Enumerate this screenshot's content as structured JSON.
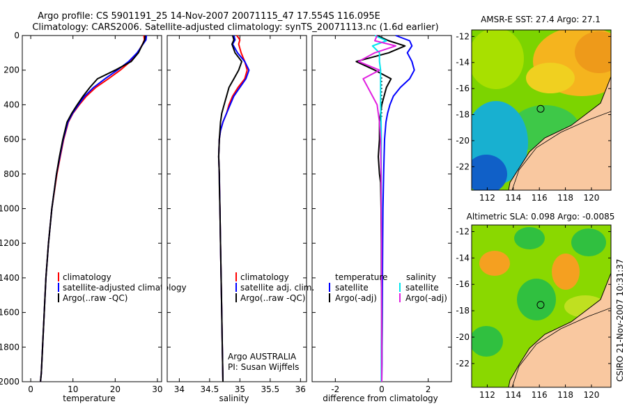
{
  "header": {
    "line1": "Argo profile: CS 5901191_25 14-Nov-2007 20071115_47 17.554S 116.095E",
    "line2": "Climatology: CARS2006. Satellite-adjusted climatology: synTS_20071113.nc (1.6d earlier)"
  },
  "colors": {
    "climatology": "#ff0000",
    "satellite": "#0000ff",
    "argo": "#000000",
    "sat_salinity": "#00e5ee",
    "argo_adj_salinity": "#e020e0",
    "land": "#f9c8a0"
  },
  "chart_data": [
    {
      "type": "line",
      "xlabel": "temperature",
      "xlim": [
        -2,
        31
      ],
      "ylim": [
        2000,
        0
      ],
      "xticks": [
        0,
        10,
        20,
        30
      ],
      "yticks": [
        0,
        200,
        400,
        600,
        800,
        1000,
        1200,
        1400,
        1600,
        1800,
        2000
      ],
      "legend": [
        "climatology",
        "satellite-adjusted climatology",
        "Argo(..raw -QC)"
      ],
      "series": [
        {
          "name": "climatology",
          "color": "#ff0000",
          "x": [
            26.8,
            26.9,
            26.5,
            25.3,
            23.6,
            21.2,
            18.4,
            15.4,
            13.2,
            11.5,
            10.0,
            8.9,
            7.8,
            7.0,
            6.2,
            5.0,
            4.2,
            3.6,
            3.2,
            2.8,
            2.5,
            2.3
          ],
          "y": [
            0,
            25,
            50,
            100,
            150,
            200,
            250,
            300,
            350,
            400,
            450,
            500,
            600,
            700,
            800,
            1000,
            1200,
            1400,
            1600,
            1800,
            1950,
            2000
          ]
        },
        {
          "name": "satellite-adjusted climatology",
          "color": "#0000ff",
          "x": [
            27.4,
            27.3,
            26.6,
            25.2,
            23.2,
            20.5,
            17.6,
            14.9,
            12.8,
            11.3,
            9.9,
            8.8,
            7.7,
            6.9,
            6.1,
            5.0,
            4.2,
            3.6,
            3.2,
            2.8,
            2.5,
            2.3
          ],
          "y": [
            0,
            25,
            50,
            100,
            150,
            200,
            250,
            300,
            350,
            400,
            450,
            500,
            600,
            700,
            800,
            1000,
            1200,
            1400,
            1600,
            1800,
            1950,
            2000
          ]
        },
        {
          "name": "Argo(..raw -QC)",
          "color": "#000000",
          "x": [
            27.1,
            27.0,
            26.5,
            25.5,
            23.8,
            20.0,
            15.8,
            14.0,
            12.4,
            11.0,
            9.7,
            8.6,
            7.6,
            6.8,
            6.1,
            5.0,
            4.2,
            3.6,
            3.2,
            2.8,
            2.5,
            2.3
          ],
          "y": [
            0,
            25,
            50,
            100,
            150,
            200,
            250,
            300,
            350,
            400,
            450,
            500,
            600,
            700,
            800,
            1000,
            1200,
            1400,
            1600,
            1800,
            1950,
            2000
          ]
        }
      ]
    },
    {
      "type": "line",
      "xlabel": "salinity",
      "xlim": [
        33.8,
        36.1
      ],
      "ylim": [
        2000,
        0
      ],
      "xticks": [
        34,
        34.5,
        35,
        35.5,
        36
      ],
      "legend": [
        "climatology",
        "satellite adj. clim.",
        "Argo(..raw -QC)"
      ],
      "annotation": [
        "Argo AUSTRALIA",
        "PI: Susan Wijffels"
      ],
      "series": [
        {
          "name": "climatology",
          "color": "#ff0000",
          "x": [
            34.95,
            35.0,
            34.98,
            35.02,
            35.08,
            35.12,
            35.08,
            34.97,
            34.88,
            34.82,
            34.78,
            34.72,
            34.68,
            34.66,
            34.65,
            34.66,
            34.67,
            34.68,
            34.69,
            34.7,
            34.71,
            34.72
          ],
          "y": [
            0,
            25,
            50,
            100,
            150,
            200,
            250,
            300,
            350,
            400,
            450,
            500,
            550,
            600,
            700,
            800,
            1000,
            1200,
            1400,
            1600,
            1800,
            2000
          ]
        },
        {
          "name": "satellite adj. clim.",
          "color": "#0000ff",
          "x": [
            34.9,
            34.92,
            34.88,
            34.96,
            35.08,
            35.15,
            35.1,
            35.0,
            34.9,
            34.84,
            34.78,
            34.72,
            34.68,
            34.66,
            34.65,
            34.66,
            34.67,
            34.68,
            34.69,
            34.7,
            34.71,
            34.72
          ],
          "y": [
            0,
            25,
            50,
            100,
            150,
            200,
            250,
            300,
            350,
            400,
            450,
            500,
            550,
            600,
            700,
            800,
            1000,
            1200,
            1400,
            1600,
            1800,
            2000
          ]
        },
        {
          "name": "Argo(..raw -QC)",
          "color": "#000000",
          "x": [
            34.88,
            34.9,
            34.87,
            34.92,
            35.03,
            34.98,
            34.9,
            34.82,
            34.78,
            34.74,
            34.7,
            34.68,
            34.67,
            34.66,
            34.65,
            34.66,
            34.66,
            34.67,
            34.68,
            34.69,
            34.7,
            34.71,
            34.72
          ],
          "y": [
            0,
            25,
            50,
            100,
            150,
            200,
            250,
            300,
            350,
            400,
            450,
            500,
            550,
            600,
            700,
            800,
            850,
            1000,
            1200,
            1400,
            1600,
            1800,
            2000
          ]
        }
      ]
    },
    {
      "type": "line",
      "xlabel": "difference from climatology",
      "xlim": [
        -3,
        3
      ],
      "ylim": [
        2000,
        0
      ],
      "xticks": [
        -2,
        0,
        2
      ],
      "legend": {
        "temperature": [
          "satellite",
          "Argo(-adj)"
        ],
        "salinity": [
          "satellite",
          "Argo(-adj)"
        ]
      },
      "series": [
        {
          "name": "temperature satellite",
          "color": "#0000ff",
          "x": [
            0.6,
            1.2,
            1.3,
            1.1,
            1.3,
            1.4,
            1.2,
            0.8,
            0.5,
            0.35,
            0.25,
            0.18,
            0.12,
            0.1,
            0.08,
            0.05,
            0.04,
            0.03,
            0.02,
            0.01,
            0.01,
            0.0
          ],
          "y": [
            0,
            30,
            60,
            100,
            150,
            200,
            250,
            300,
            350,
            400,
            450,
            500,
            600,
            700,
            800,
            1000,
            1200,
            1400,
            1600,
            1800,
            1900,
            2000
          ]
        },
        {
          "name": "temperature Argo(-adj)",
          "color": "#000000",
          "x": [
            -0.2,
            0.3,
            1.0,
            0.3,
            -1.1,
            -0.3,
            0.4,
            0.2,
            0.1,
            0.0,
            -0.05,
            -0.1,
            -0.1,
            -0.15,
            -0.1,
            -0.05,
            -0.03,
            -0.02,
            -0.02,
            0.0,
            0.0,
            0.0
          ],
          "y": [
            0,
            30,
            60,
            100,
            150,
            200,
            250,
            300,
            350,
            400,
            450,
            500,
            600,
            700,
            800,
            850,
            1000,
            1200,
            1400,
            1600,
            1800,
            2000
          ]
        },
        {
          "name": "salinity satellite",
          "color": "#00e5ee",
          "x": [
            -0.3,
            0.2,
            -0.4,
            -0.1,
            -0.1,
            -0.05,
            -0.05,
            -0.05,
            -0.05,
            -0.03,
            -0.02,
            -0.02,
            -0.02,
            -0.01,
            -0.01,
            -0.01,
            -0.01,
            -0.02,
            -0.02,
            -0.02
          ],
          "y": [
            0,
            30,
            60,
            100,
            150,
            200,
            250,
            300,
            400,
            500,
            600,
            700,
            800,
            1000,
            1200,
            1400,
            1600,
            1800,
            1900,
            2000
          ]
        },
        {
          "name": "salinity Argo(-adj)",
          "color": "#e020e0",
          "x": [
            -0.2,
            -0.3,
            0.6,
            -0.3,
            -1.0,
            -0.1,
            -0.8,
            -0.6,
            -0.4,
            -0.2,
            -0.1,
            -0.05,
            -0.03,
            -0.02,
            -0.01,
            -0.01,
            0.0
          ],
          "y": [
            0,
            30,
            60,
            100,
            150,
            200,
            250,
            300,
            350,
            400,
            500,
            600,
            800,
            1000,
            1200,
            1600,
            2000
          ]
        }
      ]
    },
    {
      "type": "heatmap",
      "title": "AMSR-E SST: 27.4 Argo: 27.1",
      "xlim": [
        110.8,
        121.5
      ],
      "ylim": [
        -23.8,
        -11.5
      ],
      "xticks": [
        112,
        114,
        116,
        118,
        120
      ],
      "yticks": [
        -12,
        -14,
        -16,
        -18,
        -20,
        -22
      ],
      "marker": {
        "lon": 116.095,
        "lat": -17.554
      }
    },
    {
      "type": "heatmap",
      "title": "Altimetric SLA: 0.098 Argo: -0.0085",
      "xlim": [
        110.8,
        121.5
      ],
      "ylim": [
        -23.8,
        -11.5
      ],
      "xticks": [
        112,
        114,
        116,
        118,
        120
      ],
      "yticks": [
        -12,
        -14,
        -16,
        -18,
        -20,
        -22
      ],
      "marker": {
        "lon": 116.095,
        "lat": -17.554
      }
    }
  ],
  "footer": {
    "credit": "CSIRO 21-Nov-2007 10:31:37"
  }
}
